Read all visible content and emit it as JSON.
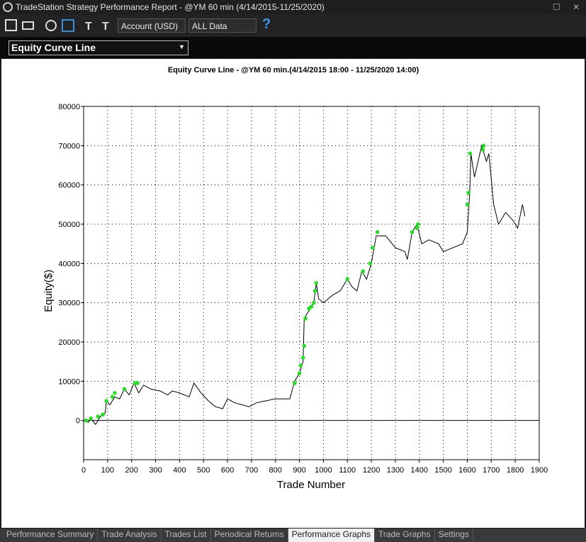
{
  "window": {
    "title": "TradeStation Strategy Performance Report - @YM 60 min (4/14/2015-11/25/2020)",
    "toolbar": {
      "account": "Account (USD)",
      "range": "ALL Data",
      "help": "?"
    },
    "view_select": "Equity Curve Line",
    "tabs": [
      "Performance Summary",
      "Trade Analysis",
      "Trades List",
      "Periodical Returns",
      "Performance Graphs",
      "Trade Graphs",
      "Settings"
    ],
    "active_tab": 4
  },
  "chart_data": {
    "type": "line",
    "title": "Equity Curve Line - @YM 60 min.(4/14/2015 18:00 - 11/25/2020 14:00)",
    "x_label": "Trade Number",
    "y_label": "Equity($)",
    "color": "#000000",
    "x": [
      0,
      20,
      30,
      50,
      70,
      90,
      95,
      110,
      130,
      150,
      170,
      190,
      210,
      230,
      250,
      280,
      320,
      350,
      370,
      400,
      440,
      460,
      490,
      520,
      550,
      580,
      600,
      630,
      660,
      690,
      720,
      760,
      800,
      840,
      860,
      880,
      900,
      915,
      920,
      940,
      960,
      970,
      980,
      1000,
      1040,
      1070,
      1100,
      1120,
      1140,
      1160,
      1180,
      1200,
      1220,
      1260,
      1300,
      1340,
      1350,
      1370,
      1390,
      1410,
      1440,
      1480,
      1500,
      1540,
      1580,
      1600,
      1610,
      1615,
      1630,
      1660,
      1680,
      1690,
      1710,
      1730,
      1760,
      1790,
      1810,
      1830,
      1840
    ],
    "values": [
      0,
      -500,
      500,
      -1000,
      1000,
      2000,
      5000,
      4000,
      6000,
      5500,
      8000,
      6500,
      9500,
      7000,
      9000,
      8000,
      7500,
      6500,
      7500,
      7000,
      6000,
      9500,
      7000,
      5000,
      3500,
      3000,
      5500,
      4500,
      4000,
      3500,
      4500,
      5000,
      5500,
      5500,
      5500,
      10000,
      12000,
      15000,
      26000,
      28000,
      30000,
      35000,
      31000,
      30000,
      32000,
      33000,
      36000,
      34000,
      33000,
      38000,
      36000,
      40000,
      47000,
      47000,
      44000,
      43000,
      41000,
      48000,
      50000,
      45000,
      46000,
      45000,
      43000,
      44000,
      45000,
      48000,
      58000,
      68000,
      62000,
      70000,
      66000,
      68000,
      55000,
      50000,
      53000,
      51000,
      49000,
      55000,
      52000
    ],
    "highs": {
      "color": "#22e022",
      "x": [
        10,
        30,
        60,
        80,
        95,
        120,
        130,
        170,
        215,
        225,
        880,
        900,
        905,
        915,
        920,
        925,
        940,
        950,
        960,
        965,
        970,
        1100,
        1165,
        1195,
        1205,
        1225,
        1370,
        1390,
        1395,
        1600,
        1605,
        1612,
        1665,
        1668
      ],
      "values": [
        0,
        500,
        1000,
        1500,
        5000,
        6000,
        7000,
        8000,
        9500,
        9500,
        9500,
        12000,
        14000,
        16000,
        19000,
        26000,
        28500,
        29000,
        30000,
        33000,
        35000,
        36000,
        38000,
        40000,
        44000,
        48000,
        48000,
        49000,
        50000,
        55000,
        58000,
        68000,
        69000,
        70000
      ]
    },
    "xlim": [
      0,
      1900
    ],
    "xticks": [
      0,
      100,
      200,
      300,
      400,
      500,
      600,
      700,
      800,
      900,
      1000,
      1100,
      1200,
      1300,
      1400,
      1500,
      1600,
      1700,
      1800,
      1900
    ],
    "ylim": [
      -10000,
      80000
    ],
    "yticks": [
      0,
      10000,
      20000,
      30000,
      40000,
      50000,
      60000,
      70000,
      80000
    ],
    "grid": true
  }
}
